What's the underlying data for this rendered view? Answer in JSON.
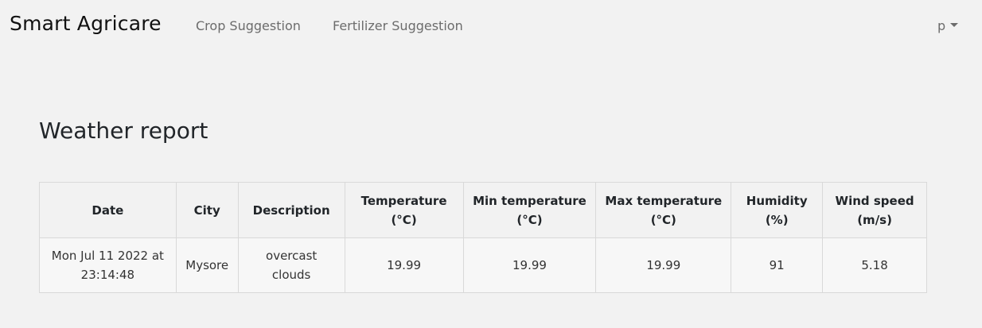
{
  "navbar": {
    "brand": "Smart Agricare",
    "links": [
      "Crop Suggestion",
      "Fertilizer Suggestion"
    ],
    "user": "p"
  },
  "page": {
    "title": "Weather report"
  },
  "table": {
    "headers": [
      "Date",
      "City",
      "Description",
      "Temperature (°C)",
      "Min temperature (°C)",
      "Max temperature (°C)",
      "Humidity (%)",
      "Wind speed (m/s)"
    ],
    "rows": [
      [
        "Mon Jul 11 2022 at 23:14:48",
        "Mysore",
        "overcast clouds",
        "19.99",
        "19.99",
        "19.99",
        "91",
        "5.18"
      ]
    ]
  }
}
